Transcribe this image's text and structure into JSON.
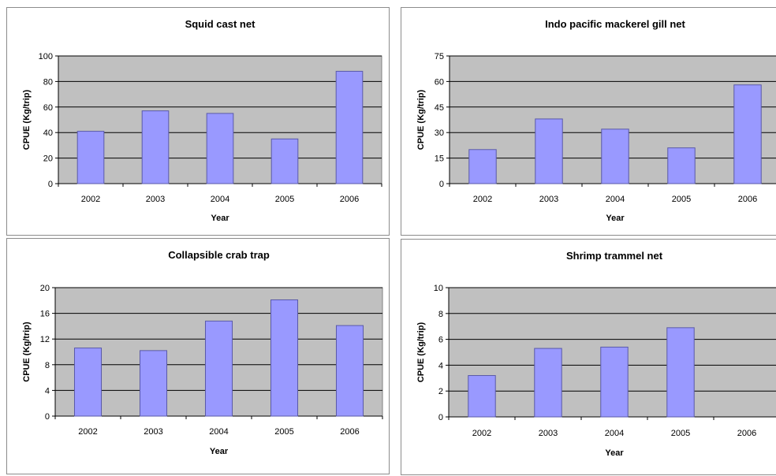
{
  "colors": {
    "plot_bg": "#c0c0c0",
    "bar_fill": "#9999ff",
    "bar_stroke": "#5a5aa8",
    "grid": "#000000",
    "panel_border": "#8c8c8c"
  },
  "chart_data": [
    {
      "type": "bar",
      "title": "Squid cast net",
      "xlabel": "Year",
      "ylabel": "CPUE (Kg/trip)",
      "categories": [
        "2002",
        "2003",
        "2004",
        "2005",
        "2006"
      ],
      "values": [
        41,
        57,
        55,
        35,
        88
      ],
      "ylim": [
        0,
        100
      ],
      "yticks": [
        0,
        20,
        40,
        60,
        80,
        100
      ],
      "grid": true,
      "legend": "none"
    },
    {
      "type": "bar",
      "title": "Indo pacific mackerel gill net",
      "xlabel": "Year",
      "ylabel": "CPUE (Kg/trip)",
      "categories": [
        "2002",
        "2003",
        "2004",
        "2005",
        "2006"
      ],
      "values": [
        20,
        38,
        32,
        21,
        58
      ],
      "ylim": [
        0,
        75
      ],
      "yticks": [
        0,
        15,
        30,
        45,
        60,
        75
      ],
      "grid": true,
      "legend": "none"
    },
    {
      "type": "bar",
      "title": "Collapsible crab trap",
      "xlabel": "Year",
      "ylabel": "CPUE (Kg/trip)",
      "categories": [
        "2002",
        "2003",
        "2004",
        "2005",
        "2006"
      ],
      "values": [
        10.6,
        10.2,
        14.8,
        18.1,
        14.1
      ],
      "ylim": [
        0,
        20
      ],
      "yticks": [
        0,
        4,
        8,
        12,
        16,
        20
      ],
      "grid": true,
      "legend": "none"
    },
    {
      "type": "bar",
      "title": "Shrimp trammel net",
      "xlabel": "Year",
      "ylabel": "CPUE (Kg/trip)",
      "categories": [
        "2002",
        "2003",
        "2004",
        "2005",
        "2006"
      ],
      "values": [
        3.2,
        5.3,
        5.4,
        6.9,
        null
      ],
      "ylim": [
        0,
        10
      ],
      "yticks": [
        0,
        2,
        4,
        6,
        8,
        10
      ],
      "grid": true,
      "legend": "none"
    }
  ]
}
